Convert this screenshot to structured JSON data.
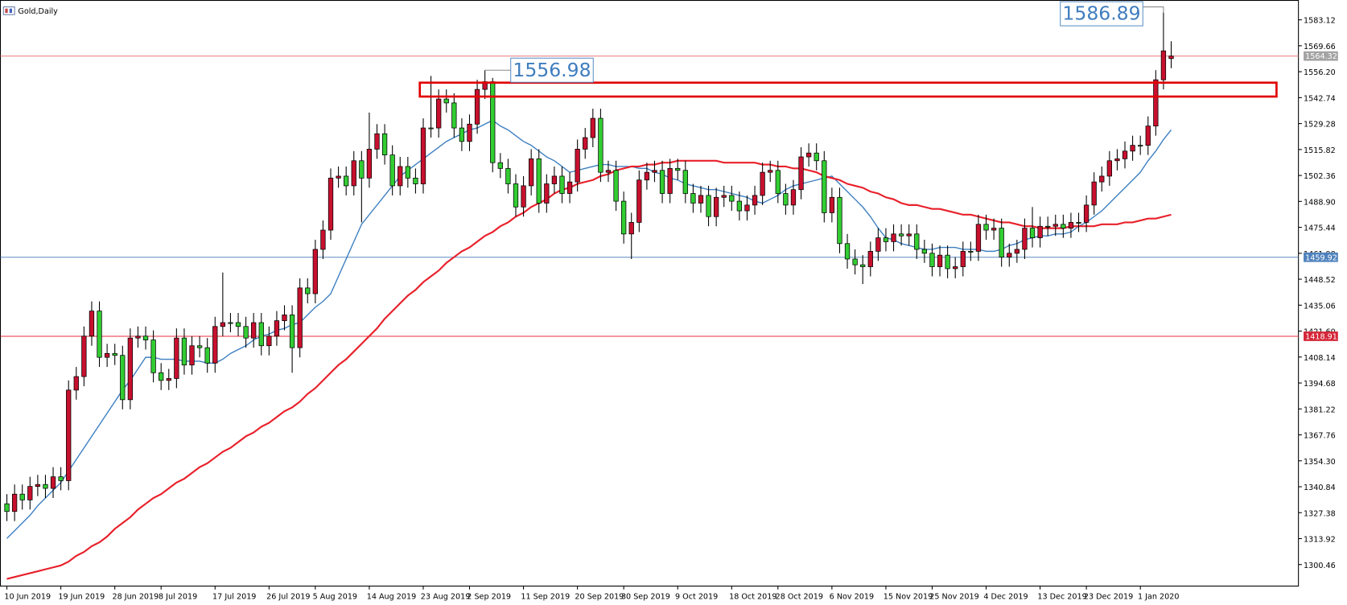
{
  "chart_data": {
    "type": "candlestick",
    "title": "Gold,Daily",
    "categories": [
      "10 Jun 2019",
      null,
      null,
      null,
      null,
      null,
      null,
      "19 Jun 2019",
      null,
      null,
      null,
      null,
      null,
      null,
      "28 Jun 2019",
      null,
      null,
      null,
      null,
      null,
      "8 Jul 2019",
      null,
      null,
      null,
      null,
      null,
      null,
      "17 Jul 2019",
      null,
      null,
      null,
      null,
      null,
      null,
      "26 Jul 2019",
      null,
      null,
      null,
      null,
      null,
      "5 Aug 2019",
      null,
      null,
      null,
      null,
      null,
      null,
      "14 Aug 2019",
      null,
      null,
      null,
      null,
      null,
      null,
      "23 Aug 2019",
      null,
      null,
      null,
      null,
      null,
      "2 Sep 2019",
      null,
      null,
      null,
      null,
      null,
      null,
      "11 Sep 2019",
      null,
      null,
      null,
      null,
      null,
      null,
      "20 Sep 2019",
      null,
      null,
      null,
      null,
      null,
      "30 Sep 2019",
      null,
      null,
      null,
      null,
      null,
      null,
      "9 Oct 2019",
      null,
      null,
      null,
      null,
      null,
      null,
      "18 Oct 2019",
      null,
      null,
      null,
      null,
      null,
      "28 Oct 2019",
      null,
      null,
      null,
      null,
      null,
      null,
      "6 Nov 2019",
      null,
      null,
      null,
      null,
      null,
      null,
      "15 Nov 2019",
      null,
      null,
      null,
      null,
      null,
      "25 Nov 2019",
      null,
      null,
      null,
      null,
      null,
      null,
      "4 Dec 2019",
      null,
      null,
      null,
      null,
      null,
      null,
      "13 Dec 2019",
      null,
      null,
      null,
      null,
      null,
      "23 Dec 2019",
      null,
      null,
      null,
      null,
      null,
      null,
      "1 Jan 2020",
      null,
      null,
      null,
      null
    ],
    "open": [
      1332,
      1328,
      1337,
      1334,
      1341,
      1342,
      1340,
      1346,
      1344,
      1391,
      1398,
      1419,
      1432,
      1408,
      1410,
      1409,
      1386,
      1418,
      1419,
      1417,
      1400,
      1396,
      1397,
      1418,
      1404,
      1414,
      1413,
      1405,
      1424,
      1426,
      1426,
      1424,
      1418,
      1426,
      1414,
      1419,
      1427,
      1430,
      1413,
      1444,
      1441,
      1464,
      1474,
      1501,
      1502,
      1497,
      1510,
      1501,
      1516,
      1524,
      1513,
      1497,
      1507,
      1501,
      1498,
      1527,
      1527,
      1542,
      1540,
      1527,
      1520,
      1529,
      1547,
      1551,
      1509,
      1506,
      1498,
      1486,
      1497,
      1511,
      1488,
      1498,
      1502,
      1493,
      1499,
      1516,
      1522,
      1532,
      1504,
      1505,
      1489,
      1472,
      1478,
      1500,
      1504,
      1505,
      1493,
      1506,
      1505,
      1493,
      1488,
      1492,
      1481,
      1491,
      1492,
      1489,
      1484,
      1487,
      1492,
      1504,
      1505,
      1493,
      1487,
      1495,
      1512,
      1514,
      1510,
      1483,
      1491,
      1467,
      1459,
      1456,
      1455,
      1463,
      1470,
      1468,
      1472,
      1471,
      1472,
      1464,
      1462,
      1455,
      1461,
      1454,
      1455,
      1463,
      1463,
      1477,
      1474,
      1475,
      1460,
      1462,
      1464,
      1475,
      1470,
      1476,
      1476,
      1477,
      1475,
      1478,
      1478,
      1487,
      1499,
      1502,
      1510,
      1511,
      1515,
      1518,
      1518,
      1528,
      1552,
      1563
    ],
    "high": [
      1337,
      1342,
      1342,
      1346,
      1347,
      1347,
      1351,
      1351,
      1396,
      1403,
      1424,
      1437,
      1437,
      1415,
      1415,
      1414,
      1423,
      1424,
      1424,
      1422,
      1405,
      1402,
      1423,
      1423,
      1419,
      1419,
      1418,
      1429,
      1452,
      1431,
      1431,
      1429,
      1431,
      1431,
      1424,
      1432,
      1435,
      1435,
      1449,
      1449,
      1469,
      1479,
      1506,
      1507,
      1507,
      1515,
      1515,
      1535,
      1529,
      1529,
      1518,
      1512,
      1512,
      1506,
      1532,
      1554,
      1547,
      1547,
      1545,
      1532,
      1534,
      1552,
      1556.98,
      1553,
      1514,
      1511,
      1503,
      1502,
      1516,
      1516,
      1503,
      1507,
      1507,
      1504,
      1521,
      1527,
      1537,
      1537,
      1510,
      1510,
      1494,
      1483,
      1505,
      1509,
      1510,
      1510,
      1511,
      1511,
      1510,
      1498,
      1497,
      1497,
      1496,
      1497,
      1497,
      1494,
      1492,
      1497,
      1509,
      1510,
      1510,
      1498,
      1500,
      1517,
      1519,
      1519,
      1515,
      1496,
      1496,
      1472,
      1464,
      1461,
      1468,
      1475,
      1475,
      1477,
      1477,
      1477,
      1477,
      1469,
      1467,
      1466,
      1466,
      1460,
      1468,
      1468,
      1482,
      1482,
      1480,
      1480,
      1467,
      1469,
      1480,
      1486,
      1481,
      1481,
      1482,
      1482,
      1483,
      1483,
      1492,
      1504,
      1507,
      1515,
      1516,
      1520,
      1523,
      1523,
      1533,
      1557,
      1586.89,
      1572
    ],
    "low": [
      1323,
      1323,
      1329,
      1329,
      1336,
      1335,
      1335,
      1339,
      1339,
      1386,
      1393,
      1414,
      1403,
      1403,
      1404,
      1381,
      1381,
      1413,
      1412,
      1395,
      1391,
      1391,
      1392,
      1399,
      1399,
      1408,
      1400,
      1400,
      1419,
      1421,
      1419,
      1413,
      1413,
      1409,
      1409,
      1414,
      1422,
      1400,
      1408,
      1436,
      1436,
      1459,
      1469,
      1496,
      1492,
      1492,
      1478,
      1496,
      1511,
      1508,
      1492,
      1492,
      1496,
      1493,
      1493,
      1522,
      1522,
      1535,
      1522,
      1515,
      1515,
      1524,
      1542,
      1504,
      1501,
      1493,
      1481,
      1481,
      1492,
      1483,
      1483,
      1493,
      1488,
      1488,
      1494,
      1511,
      1517,
      1499,
      1499,
      1484,
      1467,
      1459,
      1473,
      1495,
      1499,
      1488,
      1488,
      1500,
      1488,
      1483,
      1483,
      1476,
      1476,
      1486,
      1484,
      1479,
      1479,
      1482,
      1487,
      1499,
      1488,
      1482,
      1482,
      1490,
      1507,
      1505,
      1478,
      1478,
      1462,
      1454,
      1451,
      1446,
      1450,
      1458,
      1463,
      1463,
      1466,
      1466,
      1459,
      1457,
      1450,
      1450,
      1449,
      1449,
      1450,
      1458,
      1458,
      1469,
      1469,
      1455,
      1455,
      1457,
      1459,
      1465,
      1465,
      1471,
      1471,
      1470,
      1470,
      1473,
      1473,
      1482,
      1494,
      1497,
      1505,
      1506,
      1510,
      1513,
      1513,
      1523,
      1547,
      1558
    ],
    "close": [
      1328,
      1337,
      1334,
      1341,
      1342,
      1340,
      1346,
      1344,
      1391,
      1398,
      1419,
      1432,
      1408,
      1410,
      1409,
      1386,
      1418,
      1419,
      1417,
      1400,
      1396,
      1397,
      1418,
      1404,
      1414,
      1413,
      1405,
      1424,
      1426,
      1426,
      1424,
      1418,
      1426,
      1414,
      1419,
      1427,
      1430,
      1413,
      1444,
      1441,
      1464,
      1474,
      1501,
      1502,
      1497,
      1510,
      1501,
      1516,
      1524,
      1513,
      1497,
      1507,
      1501,
      1498,
      1527,
      1527,
      1542,
      1540,
      1527,
      1520,
      1529,
      1547,
      1551,
      1509,
      1506,
      1498,
      1486,
      1497,
      1511,
      1488,
      1498,
      1502,
      1493,
      1499,
      1516,
      1522,
      1532,
      1504,
      1505,
      1489,
      1472,
      1478,
      1500,
      1504,
      1505,
      1493,
      1506,
      1505,
      1493,
      1488,
      1492,
      1481,
      1491,
      1492,
      1489,
      1484,
      1487,
      1492,
      1504,
      1505,
      1493,
      1487,
      1495,
      1512,
      1514,
      1510,
      1483,
      1491,
      1467,
      1459,
      1456,
      1455,
      1463,
      1470,
      1468,
      1472,
      1471,
      1472,
      1464,
      1462,
      1455,
      1461,
      1454,
      1455,
      1463,
      1463,
      1477,
      1474,
      1475,
      1460,
      1462,
      1464,
      1475,
      1470,
      1476,
      1476,
      1477,
      1475,
      1478,
      1478,
      1487,
      1499,
      1502,
      1510,
      1511,
      1515,
      1518,
      1518,
      1528,
      1552,
      1567,
      1564.32
    ],
    "up_color": "#c8102e",
    "down_color": "#32cd32",
    "ma_lines": [
      {
        "color": "#3d7fc1",
        "values": [
          1314,
          1318,
          1322,
          1326,
          1331,
          1335,
          1339,
          1343,
          1349,
          1355,
          1361,
          1367,
          1373,
          1379,
          1385,
          1391,
          1396,
          1402,
          1408,
          1408,
          1407,
          1407,
          1407,
          1406,
          1406,
          1406,
          1405,
          1405,
          1407,
          1410,
          1412,
          1414,
          1417,
          1419,
          1420,
          1422,
          1423,
          1425,
          1426,
          1430,
          1434,
          1437,
          1441,
          1450,
          1459,
          1468,
          1477,
          1482,
          1487,
          1492,
          1497,
          1502,
          1505,
          1508,
          1511,
          1514,
          1517,
          1520,
          1522,
          1524,
          1526,
          1527,
          1529,
          1531,
          1528,
          1526,
          1523,
          1520,
          1518,
          1515,
          1512,
          1510,
          1507,
          1504,
          1505,
          1506,
          1507,
          1508,
          1508,
          1507,
          1507,
          1507,
          1506,
          1506,
          1504,
          1503,
          1501,
          1500,
          1498,
          1497,
          1496,
          1495,
          1495,
          1494,
          1493,
          1492,
          1491,
          1489,
          1488,
          1490,
          1492,
          1495,
          1497,
          1498,
          1499,
          1500,
          1501,
          1502,
          1498,
          1494,
          1490,
          1486,
          1481,
          1475,
          1470,
          1469,
          1467,
          1466,
          1465,
          1464,
          1464,
          1465,
          1465,
          1465,
          1464,
          1464,
          1464,
          1463,
          1463,
          1464,
          1466,
          1467,
          1469,
          1470,
          1471,
          1471,
          1472,
          1472,
          1473,
          1476,
          1478,
          1481,
          1484,
          1488,
          1492,
          1496,
          1500,
          1504,
          1510,
          1515,
          1521,
          1526
        ]
      },
      {
        "color": "#e8202a",
        "values": [
          1293,
          1294,
          1295,
          1296,
          1297,
          1298,
          1299,
          1300,
          1302,
          1305,
          1307,
          1310,
          1312,
          1315,
          1319,
          1322,
          1325,
          1329,
          1332,
          1335,
          1337,
          1340,
          1343,
          1345,
          1348,
          1351,
          1353,
          1356,
          1359,
          1361,
          1364,
          1367,
          1369,
          1372,
          1374,
          1377,
          1380,
          1382,
          1385,
          1389,
          1392,
          1396,
          1400,
          1404,
          1407,
          1411,
          1415,
          1419,
          1423,
          1428,
          1432,
          1436,
          1440,
          1443,
          1447,
          1450,
          1453,
          1457,
          1460,
          1463,
          1465,
          1468,
          1471,
          1473,
          1476,
          1478,
          1481,
          1483,
          1486,
          1488,
          1490,
          1493,
          1495,
          1496,
          1498,
          1499,
          1500,
          1502,
          1503,
          1505,
          1506,
          1507,
          1507,
          1508,
          1508,
          1509,
          1509,
          1510,
          1510,
          1510,
          1510,
          1510,
          1510,
          1509,
          1509,
          1509,
          1509,
          1509,
          1508,
          1508,
          1507,
          1507,
          1506,
          1506,
          1505,
          1504,
          1502,
          1501,
          1500,
          1498,
          1497,
          1496,
          1494,
          1493,
          1491,
          1490,
          1488,
          1487,
          1487,
          1486,
          1485,
          1485,
          1484,
          1483,
          1482,
          1482,
          1481,
          1480,
          1479,
          1478,
          1478,
          1477,
          1476,
          1476,
          1475,
          1475,
          1475,
          1475,
          1476,
          1476,
          1476,
          1476,
          1477,
          1477,
          1477,
          1478,
          1478,
          1479,
          1480,
          1480,
          1481,
          1482
        ]
      }
    ],
    "price_lines": [
      {
        "value": 1564.32,
        "color": "#e98a8a",
        "label_color": "#a3a3a3"
      },
      {
        "value": 1459.92,
        "color": "#5b8cc2",
        "label_color": "#4f82bd"
      },
      {
        "value": 1418.91,
        "color": "#e8303c",
        "label_color": "#d42638"
      }
    ],
    "rectangle": [
      1543.3,
      1550.5
    ],
    "annotations": [
      {
        "value": 1556.98
      },
      {
        "value": 1586.89
      }
    ],
    "ylim": [
      1289.3,
      1593.4
    ],
    "yticks": [
      1583.12,
      1569.66,
      {
        "value": 1556.2,
        "label": "1556.20"
      },
      1542.74,
      1529.28,
      1515.82,
      1502.36,
      {
        "value": 1488.9,
        "label": "1488.90"
      },
      1475.44,
      1461.98,
      1448.52,
      1435.06,
      {
        "value": 1421.6,
        "label": "1421.60"
      },
      1408.14,
      1394.68,
      1381.22,
      1367.76,
      {
        "value": 1354.3,
        "label": "1354.30"
      },
      1340.84,
      1327.38,
      1313.92,
      1300.46
    ]
  }
}
